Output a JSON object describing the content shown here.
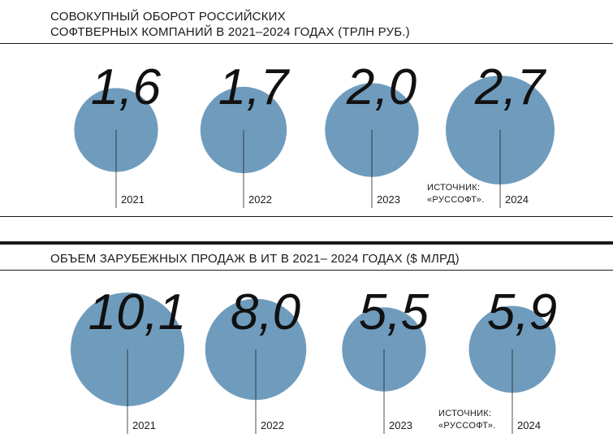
{
  "chart_data": [
    {
      "type": "bubble",
      "title_line1": "СОВОКУПНЫЙ ОБОРОТ РОССИЙСКИХ",
      "title_line2": "СОФТВЕРНЫХ КОМПАНИЙ В 2021–2024 ГОДАХ (ТРЛН РУБ.)",
      "categories": [
        "2021",
        "2022",
        "2023",
        "2024"
      ],
      "values": [
        1.6,
        1.7,
        2.0,
        2.7
      ],
      "value_labels": [
        "1,6",
        "1,7",
        "2,0",
        "2,7"
      ],
      "source_line1": "ИСТОЧНИК:",
      "source_line2": "«РУССОФТ».",
      "color": "#6f9cbd"
    },
    {
      "type": "bubble",
      "title_line1": "ОБЪЕМ ЗАРУБЕЖНЫХ ПРОДАЖ В ИТ В 2021– 2024 ГОДАХ ($ МЛРД)",
      "categories": [
        "2021",
        "2022",
        "2023",
        "2024"
      ],
      "values": [
        10.1,
        8.0,
        5.5,
        5.9
      ],
      "value_labels": [
        "10,1",
        "8,0",
        "5,5",
        "5,9"
      ],
      "source_line1": "ИСТОЧНИК:",
      "source_line2": "«РУССОФТ».",
      "color": "#6f9cbd"
    }
  ]
}
